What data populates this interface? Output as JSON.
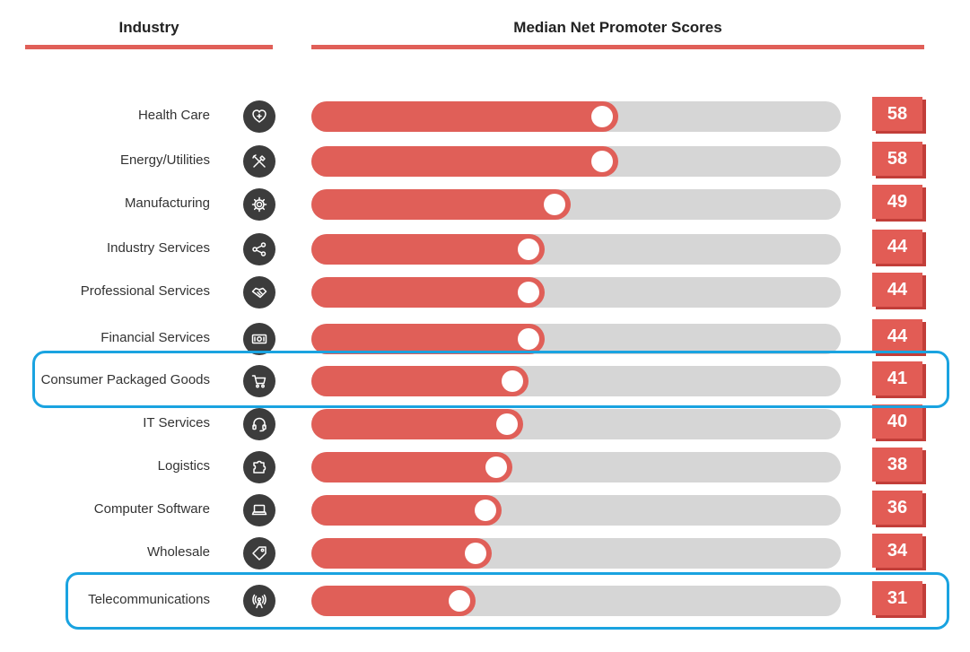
{
  "headers": {
    "industry": "Industry",
    "scores": "Median Net Promoter Scores"
  },
  "colors": {
    "accent": "#e05f58",
    "track": "#d6d6d6",
    "icon_bg": "#3c3c3c",
    "highlight": "#1aa3e0"
  },
  "chart_data": {
    "type": "bar",
    "orientation": "horizontal",
    "title": "Median Net Promoter Scores",
    "xlabel": "",
    "ylabel": "Industry",
    "xlim": [
      0,
      100
    ],
    "categories": [
      "Health Care",
      "Energy/Utilities",
      "Manufacturing",
      "Industry Services",
      "Professional Services",
      "Financial Services",
      "Consumer Packaged Goods",
      "IT Services",
      "Logistics",
      "Computer Software",
      "Wholesale",
      "Telecommunications"
    ],
    "values": [
      58,
      58,
      49,
      44,
      44,
      44,
      41,
      40,
      38,
      36,
      34,
      31
    ],
    "icons": [
      "heart-icon",
      "tools-icon",
      "gear-icon",
      "share-icon",
      "handshake-icon",
      "money-icon",
      "cart-icon",
      "headset-icon",
      "puzzle-icon",
      "laptop-icon",
      "tag-icon",
      "antenna-icon"
    ],
    "highlighted": [
      "Consumer Packaged Goods",
      "Telecommunications"
    ]
  }
}
